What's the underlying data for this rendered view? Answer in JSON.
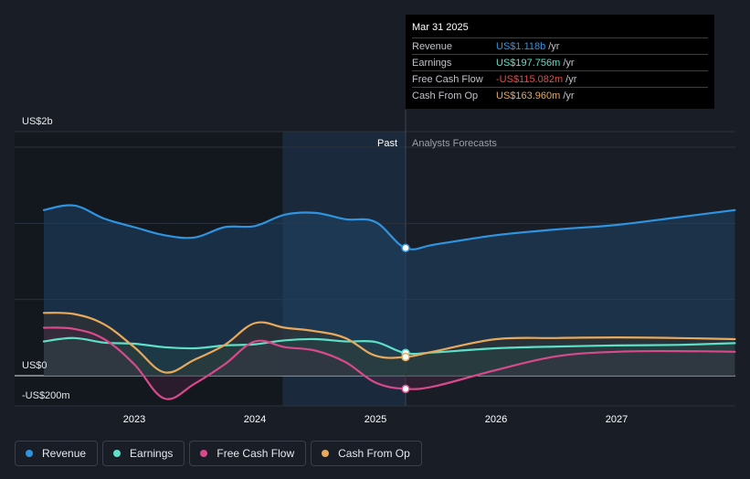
{
  "chart_data": {
    "type": "line",
    "title": "",
    "y_axis_labels": [
      "US$2b",
      "US$0",
      "-US$200m"
    ],
    "ylim": [
      -200,
      2000
    ],
    "x_ticks": [
      {
        "label": "2023",
        "x": 2023.0
      },
      {
        "label": "2024",
        "x": 2024.0
      },
      {
        "label": "2025",
        "x": 2025.0
      },
      {
        "label": "2026",
        "x": 2026.0
      },
      {
        "label": "2027",
        "x": 2027.0
      }
    ],
    "past_label": "Past",
    "forecast_label": "Analysts Forecasts",
    "divider_x": 2025.25,
    "series": [
      {
        "name": "Revenue",
        "color": "#2f94e0",
        "fill": "#1f4466",
        "points": [
          [
            2022.25,
            1450
          ],
          [
            2022.5,
            1490
          ],
          [
            2022.75,
            1375
          ],
          [
            2023.0,
            1300
          ],
          [
            2023.25,
            1230
          ],
          [
            2023.5,
            1210
          ],
          [
            2023.75,
            1300
          ],
          [
            2024.0,
            1310
          ],
          [
            2024.25,
            1410
          ],
          [
            2024.5,
            1425
          ],
          [
            2024.75,
            1370
          ],
          [
            2025.0,
            1345
          ],
          [
            2025.25,
            1118
          ],
          [
            2025.5,
            1150
          ],
          [
            2026.0,
            1230
          ],
          [
            2026.5,
            1280
          ],
          [
            2027.0,
            1320
          ],
          [
            2027.5,
            1385
          ],
          [
            2027.98,
            1450
          ]
        ]
      },
      {
        "name": "Earnings",
        "color": "#5ee0c8",
        "fill": "#264848",
        "points": [
          [
            2022.25,
            300
          ],
          [
            2022.5,
            330
          ],
          [
            2022.75,
            290
          ],
          [
            2023.0,
            280
          ],
          [
            2023.25,
            250
          ],
          [
            2023.5,
            240
          ],
          [
            2023.75,
            265
          ],
          [
            2024.0,
            275
          ],
          [
            2024.25,
            310
          ],
          [
            2024.5,
            320
          ],
          [
            2024.75,
            300
          ],
          [
            2025.0,
            295
          ],
          [
            2025.25,
            197.756
          ],
          [
            2025.5,
            205
          ],
          [
            2026.0,
            240
          ],
          [
            2026.5,
            255
          ],
          [
            2027.0,
            265
          ],
          [
            2027.5,
            270
          ],
          [
            2027.98,
            285
          ]
        ]
      },
      {
        "name": "Free Cash Flow",
        "color": "#d84a8c",
        "fill": "#4a2440",
        "points": [
          [
            2022.25,
            420
          ],
          [
            2022.5,
            410
          ],
          [
            2022.75,
            320
          ],
          [
            2023.0,
            100
          ],
          [
            2023.25,
            -200
          ],
          [
            2023.5,
            -70
          ],
          [
            2023.75,
            100
          ],
          [
            2024.0,
            300
          ],
          [
            2024.25,
            250
          ],
          [
            2024.5,
            220
          ],
          [
            2024.75,
            120
          ],
          [
            2025.0,
            -60
          ],
          [
            2025.25,
            -115.082
          ],
          [
            2025.5,
            -90
          ],
          [
            2026.0,
            50
          ],
          [
            2026.5,
            170
          ],
          [
            2027.0,
            210
          ],
          [
            2027.5,
            215
          ],
          [
            2027.98,
            210
          ]
        ]
      },
      {
        "name": "Cash From Op",
        "color": "#e8a95c",
        "fill": "#3e3426",
        "points": [
          [
            2022.25,
            550
          ],
          [
            2022.5,
            540
          ],
          [
            2022.75,
            450
          ],
          [
            2023.0,
            250
          ],
          [
            2023.25,
            30
          ],
          [
            2023.5,
            140
          ],
          [
            2023.75,
            270
          ],
          [
            2024.0,
            460
          ],
          [
            2024.25,
            420
          ],
          [
            2024.5,
            390
          ],
          [
            2024.75,
            330
          ],
          [
            2025.0,
            175
          ],
          [
            2025.25,
            163.96
          ],
          [
            2025.5,
            215
          ],
          [
            2026.0,
            320
          ],
          [
            2026.5,
            330
          ],
          [
            2027.0,
            335
          ],
          [
            2027.5,
            330
          ],
          [
            2027.98,
            320
          ]
        ]
      }
    ]
  },
  "tooltip": {
    "date": "Mar 31 2025",
    "rows": [
      {
        "label": "Revenue",
        "value": "US$1.118b",
        "unit": "/yr",
        "color": "#2f94e0"
      },
      {
        "label": "Earnings",
        "value": "US$197.756m",
        "unit": "/yr",
        "color": "#5ee0c8"
      },
      {
        "label": "Free Cash Flow",
        "value": "-US$115.082m",
        "unit": "/yr",
        "color": "#e84a4a"
      },
      {
        "label": "Cash From Op",
        "value": "US$163.960m",
        "unit": "/yr",
        "color": "#e8a95c"
      }
    ]
  },
  "legend": [
    {
      "label": "Revenue",
      "color": "#2f94e0"
    },
    {
      "label": "Earnings",
      "color": "#5ee0c8"
    },
    {
      "label": "Free Cash Flow",
      "color": "#d84a8c"
    },
    {
      "label": "Cash From Op",
      "color": "#e8a95c"
    }
  ]
}
